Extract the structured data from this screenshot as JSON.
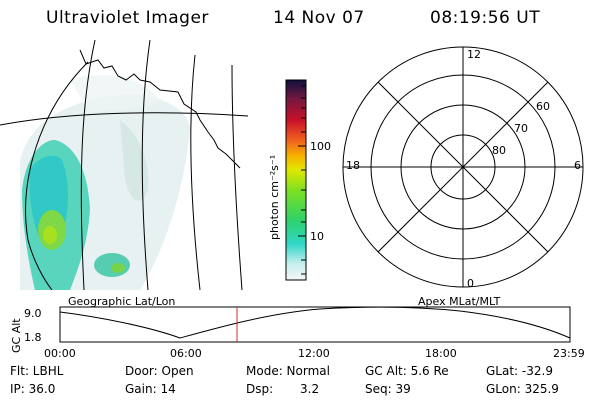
{
  "header": {
    "title": "Ultraviolet Imager",
    "date": "14 Nov 07",
    "time": "08:19:56 UT"
  },
  "colorbar": {
    "unit_label": "photon cm⁻²s⁻¹",
    "ticks": [
      "100",
      "10"
    ]
  },
  "polar_plot": {
    "mlt_labels": [
      "12",
      "18",
      "6",
      "0"
    ],
    "lat_labels": [
      "60",
      "70",
      "80"
    ]
  },
  "timeline": {
    "left_label": "Geographic Lat/Lon",
    "right_label": "Apex MLat/MLT",
    "y_axis_label": "GC Alt",
    "y_ticks": [
      "9.0",
      "1.8"
    ],
    "x_ticks": [
      "00:00",
      "06:00",
      "12:00",
      "18:00",
      "23:59"
    ]
  },
  "info": {
    "row1": [
      {
        "text": "Flt: LBHL"
      },
      {
        "text": "Door: Open"
      },
      {
        "text": "Mode: Normal"
      },
      {
        "text": "GC Alt: 5.6 Re"
      },
      {
        "text": "GLat: -32.9"
      }
    ],
    "row2": [
      {
        "text": "IP: 36.0"
      },
      {
        "text": "Gain: 14"
      },
      {
        "text": "Dsp:"
      },
      {
        "text": "3.2"
      },
      {
        "text": "Seq: 39"
      },
      {
        "text": "GLon: 325.9"
      }
    ]
  },
  "colors": {
    "marker": "#c8302a"
  }
}
